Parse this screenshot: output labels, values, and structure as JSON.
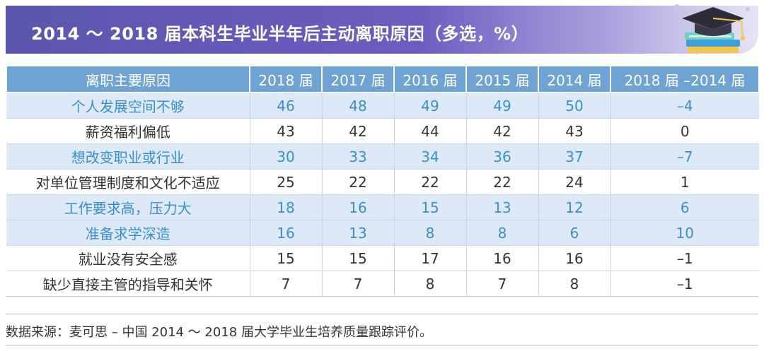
{
  "title": "2014 ～ 2018 届本科生毕业半年后主动离职原因（多选，%）",
  "table": {
    "headers": [
      "离职主要原因",
      "2018 届",
      "2017 届",
      "2016 届",
      "2015 届",
      "2014 届",
      "2018 届 –2014 届"
    ],
    "rows": [
      {
        "cells": [
          "个人发展空间不够",
          "46",
          "48",
          "49",
          "49",
          "50",
          "–4"
        ],
        "highlight": true
      },
      {
        "cells": [
          "薪资福利偏低",
          "43",
          "42",
          "44",
          "42",
          "43",
          "0"
        ],
        "highlight": false
      },
      {
        "cells": [
          "想改变职业或行业",
          "30",
          "33",
          "34",
          "36",
          "37",
          "–7"
        ],
        "highlight": true
      },
      {
        "cells": [
          "对单位管理制度和文化不适应",
          "25",
          "22",
          "22",
          "22",
          "24",
          "1"
        ],
        "highlight": false
      },
      {
        "cells": [
          "工作要求高，压力大",
          "18",
          "16",
          "15",
          "13",
          "12",
          "6"
        ],
        "highlight": true
      },
      {
        "cells": [
          "准备求学深造",
          "16",
          "13",
          "8",
          "8",
          "6",
          "10"
        ],
        "highlight": true
      },
      {
        "cells": [
          "就业没有安全感",
          "15",
          "15",
          "17",
          "16",
          "16",
          "–1"
        ],
        "highlight": false
      },
      {
        "cells": [
          "缺少直接主管的指导和关怀",
          "7",
          "7",
          "8",
          "7",
          "8",
          "–1"
        ],
        "highlight": false
      }
    ]
  },
  "source": "数据来源：麦可思 – 中国 2014 ～ 2018 届大学毕业生培养质量跟踪评价。",
  "colors": {
    "header_bar": "#5b56ad",
    "table_header": "#6fa3d4",
    "highlight_row": "#dde9f7",
    "highlight_text": "#3a8fcf"
  },
  "icons": [
    "graduation-cap-icon",
    "books-icon"
  ]
}
